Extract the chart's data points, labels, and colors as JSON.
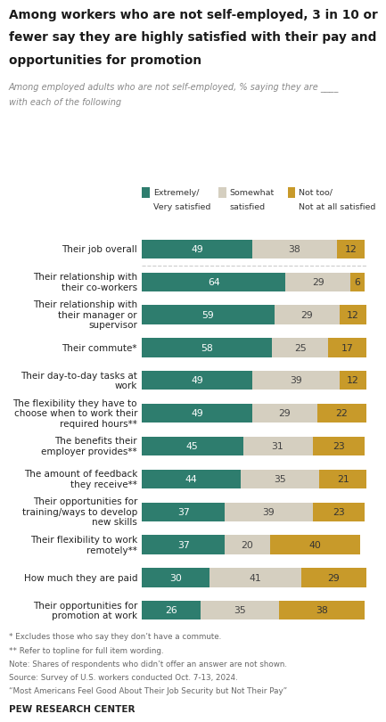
{
  "title_lines": [
    "Among workers who are not self-employed, 3 in 10 or",
    "fewer say they are highly satisfied with their pay and",
    "opportunities for promotion"
  ],
  "subtitle_line1": "Among employed adults who are not self-employed, % saying they are ____",
  "subtitle_line2": "with each of the following",
  "categories": [
    "Their job overall",
    "Their relationship with\ntheir co-workers",
    "Their relationship with\ntheir manager or\nsupervisor",
    "Their commute*",
    "Their day-to-day tasks at\nwork",
    "The flexibility they have to\nchoose when to work their\nrequired hours**",
    "The benefits their\nemployer provides**",
    "The amount of feedback\nthey receive**",
    "Their opportunities for\ntraining/ways to develop\nnew skills",
    "Their flexibility to work\nremotely**",
    "How much they are paid",
    "Their opportunities for\npromotion at work"
  ],
  "extremely_very": [
    49,
    64,
    59,
    58,
    49,
    49,
    45,
    44,
    37,
    37,
    30,
    26
  ],
  "somewhat": [
    38,
    29,
    29,
    25,
    39,
    29,
    31,
    35,
    39,
    20,
    41,
    35
  ],
  "not_too": [
    12,
    6,
    12,
    17,
    12,
    22,
    23,
    21,
    23,
    40,
    29,
    38
  ],
  "color_green": "#2e7d6e",
  "color_beige": "#d5cfc0",
  "color_gold": "#c89a2a",
  "legend_labels": [
    "Extremely/\nVery satisfied",
    "Somewhat\nsatisfied",
    "Not too/\nNot at all satisfied"
  ],
  "footnotes": [
    "* Excludes those who say they don’t have a commute.",
    "** Refer to topline for full item wording.",
    "Note: Shares of respondents who didn’t offer an answer are not shown.",
    "Source: Survey of U.S. workers conducted Oct. 7-13, 2024.",
    "“Most Americans Feel Good About Their Job Security but Not Their Pay”"
  ],
  "footer": "PEW RESEARCH CENTER",
  "background_color": "#ffffff"
}
